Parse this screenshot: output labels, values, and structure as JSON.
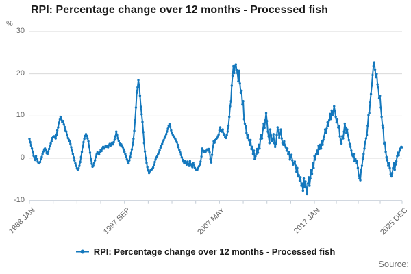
{
  "title": "RPI: Percentage change over 12 months - Processed fish",
  "y_axis": {
    "unit_label": "%",
    "ticks": [
      30,
      20,
      10,
      0,
      -10
    ],
    "min": -10,
    "max": 30
  },
  "x_axis": {
    "labels": [
      "1988 JAN",
      "1997 SEP",
      "2007 MAY",
      "2017 JAN",
      "2025 DEC"
    ],
    "label_months": [
      0,
      116,
      232,
      348,
      455
    ],
    "minor_ticks_between_labels": 3
  },
  "legend": {
    "label": "RPI: Percentage change over 12 months - Processed fish"
  },
  "source_label": "Source:",
  "colors": {
    "line": "#1478bd",
    "grid": "#d9d9d9",
    "axis": "#c3ccd5",
    "tick_text": "#666666",
    "title_text": "#1a1a1a",
    "source_text": "#6e6e6e"
  },
  "chart_data": {
    "type": "line",
    "title": "RPI: Percentage change over 12 months - Processed fish",
    "series_name": "RPI: Percentage change over 12 months - Processed fish",
    "unit": "%",
    "frequency": "monthly",
    "start": "1988-01",
    "end": "2025-12",
    "ylim": [
      -10,
      30
    ],
    "grid": true,
    "legend_position": "bottom",
    "markers": true,
    "values": [
      4.6,
      3.8,
      3.0,
      2.3,
      1.5,
      0.6,
      0.2,
      -0.4,
      0.5,
      -0.2,
      -0.8,
      -1.1,
      -1.2,
      -0.9,
      -0.2,
      0.3,
      1.0,
      1.6,
      2.1,
      2.3,
      1.9,
      1.2,
      1.0,
      1.6,
      2.2,
      2.9,
      3.5,
      4.0,
      4.8,
      5.0,
      5.2,
      4.9,
      4.7,
      5.5,
      6.6,
      7.3,
      8.4,
      9.3,
      9.8,
      9.2,
      8.6,
      8.8,
      8.0,
      7.4,
      6.6,
      6.3,
      5.5,
      4.8,
      4.4,
      4.0,
      3.4,
      2.6,
      1.8,
      1.0,
      0.2,
      -0.5,
      -1.2,
      -1.8,
      -2.4,
      -2.7,
      -2.4,
      -1.8,
      -0.9,
      0.3,
      1.5,
      2.7,
      3.8,
      4.6,
      5.3,
      5.7,
      5.3,
      4.7,
      4.0,
      2.7,
      1.3,
      -0.2,
      -1.3,
      -2.0,
      -1.8,
      -1.1,
      -0.5,
      0.3,
      0.9,
      1.4,
      1.2,
      0.9,
      1.5,
      2.0,
      1.7,
      2.3,
      2.7,
      2.3,
      2.6,
      3.0,
      2.7,
      2.9,
      2.6,
      3.1,
      3.4,
      3.0,
      3.4,
      3.7,
      3.3,
      3.8,
      4.4,
      5.2,
      6.3,
      5.5,
      4.7,
      4.1,
      3.5,
      3.1,
      3.3,
      2.9,
      2.6,
      2.1,
      1.5,
      1.0,
      0.4,
      -0.3,
      -0.7,
      -1.2,
      -0.5,
      0.3,
      1.2,
      2.1,
      3.2,
      4.6,
      6.5,
      9.0,
      12.0,
      15.5,
      16.8,
      18.5,
      17.2,
      14.8,
      12.2,
      10.4,
      8.6,
      6.2,
      3.6,
      1.6,
      0.1,
      -1.1,
      -2.1,
      -2.9,
      -3.5,
      -3.1,
      -2.8,
      -2.7,
      -2.5,
      -2.2,
      -1.6,
      -0.9,
      -0.3,
      0.2,
      0.5,
      0.9,
      1.3,
      1.9,
      2.5,
      3.0,
      3.4,
      3.9,
      4.3,
      4.8,
      5.2,
      5.7,
      6.3,
      7.0,
      7.7,
      8.1,
      7.4,
      6.6,
      6.0,
      5.6,
      5.2,
      4.9,
      4.6,
      4.2,
      3.8,
      3.2,
      2.6,
      2.0,
      1.4,
      0.8,
      0.2,
      -0.4,
      -0.8,
      -1.2,
      -0.7,
      -1.1,
      -1.5,
      -0.8,
      -1.3,
      -1.8,
      -0.7,
      -1.4,
      -1.8,
      -2.1,
      -1.1,
      -1.7,
      -2.3,
      -2.6,
      -2.8,
      -2.7,
      -2.3,
      -1.9,
      -1.5,
      -0.8,
      0.4,
      2.3,
      1.8,
      1.5,
      1.7,
      1.5,
      1.8,
      2.1,
      1.8,
      2.2,
      1.4,
      -0.2,
      -1.0,
      0.8,
      2.7,
      4.0,
      3.7,
      4.3,
      4.5,
      4.8,
      5.2,
      5.6,
      6.6,
      7.3,
      6.5,
      6.3,
      6.8,
      5.8,
      5.5,
      5.0,
      4.8,
      5.5,
      6.3,
      7.7,
      9.8,
      12.3,
      13.5,
      17.2,
      19.5,
      21.8,
      20.2,
      21.8,
      22.2,
      20.9,
      20.2,
      18.2,
      20.7,
      17.7,
      15.5,
      16.0,
      12.7,
      13.5,
      9.3,
      8.2,
      7.7,
      6.0,
      4.8,
      5.5,
      4.3,
      3.2,
      4.3,
      2.2,
      2.7,
      1.0,
      1.8,
      -0.2,
      0.5,
      1.0,
      2.2,
      1.3,
      3.2,
      2.3,
      4.5,
      5.5,
      4.7,
      6.8,
      8.2,
      7.2,
      9.0,
      10.7,
      8.8,
      6.3,
      5.2,
      3.6,
      6.8,
      5.4,
      4.1,
      4.4,
      5.7,
      3.6,
      2.7,
      3.4,
      5.5,
      7.3,
      6.5,
      4.8,
      5.8,
      6.8,
      4.7,
      3.6,
      3.2,
      4.0,
      3.1,
      2.6,
      1.8,
      2.3,
      1.0,
      1.5,
      -0.3,
      0.2,
      0.8,
      -0.5,
      -1.5,
      -1.2,
      -0.8,
      -1.8,
      -3.2,
      -2.3,
      -4.3,
      -4.0,
      -5.3,
      -4.5,
      -6.5,
      -6.0,
      -7.7,
      -4.8,
      -6.8,
      -5.5,
      -7.0,
      -8.5,
      -6.0,
      -4.5,
      -6.5,
      -4.8,
      -2.7,
      -3.7,
      -1.2,
      -2.3,
      0.5,
      -0.3,
      0.9,
      1.8,
      1.0,
      3.0,
      2.2,
      3.2,
      2.3,
      4.0,
      3.2,
      4.4,
      5.2,
      6.8,
      6.0,
      7.0,
      8.5,
      7.6,
      9.0,
      10.5,
      9.3,
      11.3,
      10.2,
      11.0,
      12.3,
      11.2,
      9.8,
      8.5,
      9.3,
      7.3,
      7.7,
      5.2,
      4.3,
      3.5,
      5.2,
      4.7,
      6.3,
      8.2,
      7.2,
      6.0,
      6.8,
      5.4,
      4.3,
      3.4,
      2.7,
      1.8,
      0.8,
      0.5,
      1.0,
      -0.7,
      -0.2,
      -1.2,
      -0.7,
      -2.3,
      -4.0,
      -4.8,
      -5.2,
      -2.8,
      -1.8,
      -0.2,
      1.0,
      2.3,
      3.8,
      4.7,
      5.5,
      7.7,
      10.2,
      10.7,
      13.2,
      15.2,
      17.2,
      19.7,
      21.8,
      22.7,
      21.0,
      19.2,
      20.0,
      17.5,
      16.7,
      14.2,
      14.8,
      12.0,
      9.8,
      7.8,
      7.2,
      3.5,
      3.7,
      1.5,
      0.3,
      -0.5,
      -1.8,
      -1.2,
      -2.3,
      -3.8,
      -4.3,
      -3.5,
      -2.3,
      -1.2,
      -2.7,
      -1.5,
      -0.7,
      0.5,
      1.3,
      0.7,
      1.8,
      2.3,
      2.7,
      2.6
    ]
  }
}
